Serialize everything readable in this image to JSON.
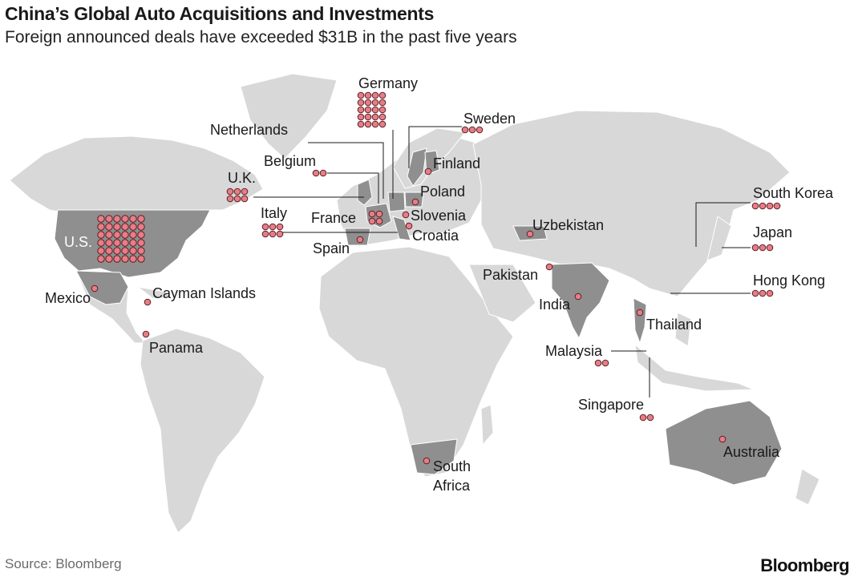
{
  "title": "China’s Global Auto Acquisitions and Investments",
  "subtitle": "Foreign announced deals have exceeded $31B in the past five years",
  "source": "Source: Bloomberg",
  "brand": "Bloomberg",
  "colors": {
    "land": "#d8d8d8",
    "highlight": "#8f8f8f",
    "dot_fill": "#e77d86",
    "dot_stroke": "#5a1f25"
  },
  "countries": [
    {
      "id": "germany",
      "label": "Germany",
      "deals": 20
    },
    {
      "id": "netherlands",
      "label": "Netherlands",
      "deals": 0
    },
    {
      "id": "sweden",
      "label": "Sweden",
      "deals": 3
    },
    {
      "id": "belgium",
      "label": "Belgium",
      "deals": 2
    },
    {
      "id": "finland",
      "label": "Finland",
      "deals": 1
    },
    {
      "id": "uk",
      "label": "U.K.",
      "deals": 6
    },
    {
      "id": "poland",
      "label": "Poland",
      "deals": 1
    },
    {
      "id": "france",
      "label": "France",
      "deals": 4
    },
    {
      "id": "slovenia",
      "label": "Slovenia",
      "deals": 1
    },
    {
      "id": "italy",
      "label": "Italy",
      "deals": 6
    },
    {
      "id": "croatia",
      "label": "Croatia",
      "deals": 1
    },
    {
      "id": "spain",
      "label": "Spain",
      "deals": 1
    },
    {
      "id": "us",
      "label": "U.S.",
      "deals": 36
    },
    {
      "id": "mexico",
      "label": "Mexico",
      "deals": 1
    },
    {
      "id": "cayman",
      "label": "Cayman Islands",
      "deals": 1
    },
    {
      "id": "panama",
      "label": "Panama",
      "deals": 1
    },
    {
      "id": "uzbekistan",
      "label": "Uzbekistan",
      "deals": 1
    },
    {
      "id": "pakistan",
      "label": "Pakistan",
      "deals": 1
    },
    {
      "id": "india",
      "label": "India",
      "deals": 1
    },
    {
      "id": "thailand",
      "label": "Thailand",
      "deals": 1
    },
    {
      "id": "malaysia",
      "label": "Malaysia",
      "deals": 2
    },
    {
      "id": "singapore",
      "label": "Singapore",
      "deals": 2
    },
    {
      "id": "south_korea",
      "label": "South Korea",
      "deals": 4
    },
    {
      "id": "japan",
      "label": "Japan",
      "deals": 3
    },
    {
      "id": "hong_kong",
      "label": "Hong Kong",
      "deals": 3
    },
    {
      "id": "south_africa",
      "label": "South Africa",
      "deals": 1
    },
    {
      "id": "australia",
      "label": "Australia",
      "deals": 1
    }
  ]
}
